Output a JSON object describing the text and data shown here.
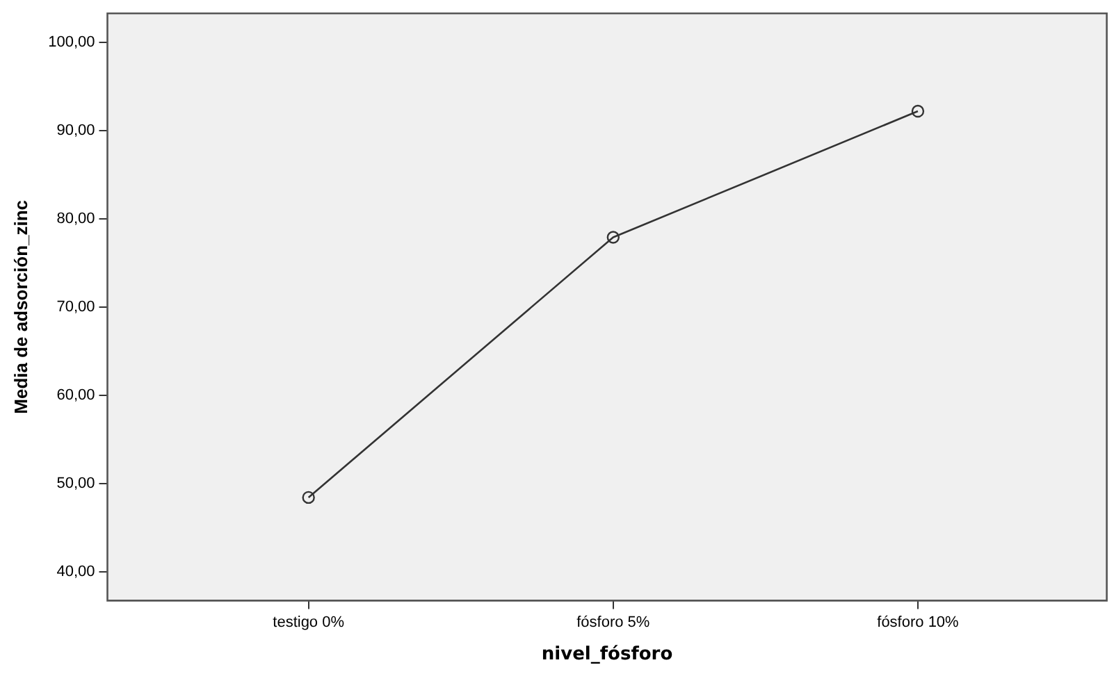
{
  "chart_data": {
    "type": "line",
    "xlabel": "nivel_fósforo",
    "ylabel": "Media de adsorción_zinc",
    "categories": [
      "testigo 0%",
      "fósforo 5%",
      "fósforo 10%"
    ],
    "series": [
      {
        "color": "#333333",
        "values": [
          48.4,
          77.9,
          92.2
        ]
      }
    ],
    "ylim": [
      36.7,
      103.3
    ],
    "yticks": [
      {
        "value": 40,
        "label": "40,00"
      },
      {
        "value": 50,
        "label": "50,00"
      },
      {
        "value": 60,
        "label": "60,00"
      },
      {
        "value": 70,
        "label": "70,00"
      },
      {
        "value": 80,
        "label": "80,00"
      },
      {
        "value": 90,
        "label": "90,00"
      },
      {
        "value": 100,
        "label": "100,00"
      }
    ],
    "grid": false,
    "legend": false,
    "marker": "circle",
    "line_style": "solid"
  }
}
